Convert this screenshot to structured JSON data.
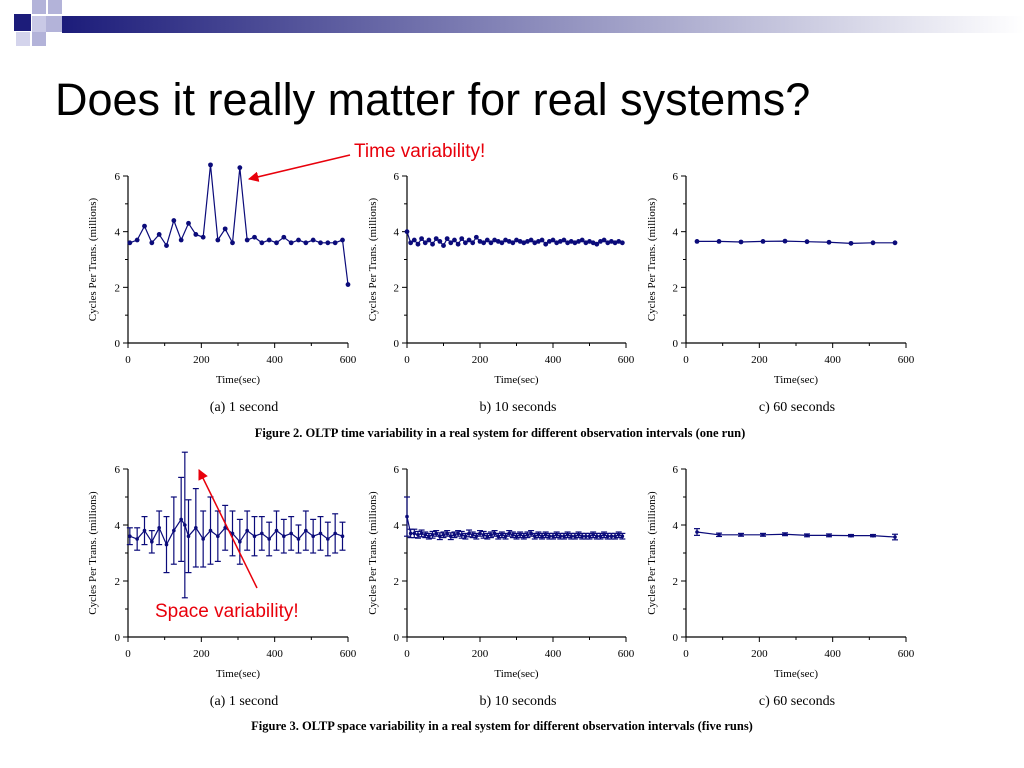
{
  "slide": {
    "title": "Does it really matter for real systems?"
  },
  "theme": {
    "deco_dark": "#1c1c7a",
    "deco_light": "#b3b3d9",
    "series_color": "#0b0b7a",
    "annotation_color": "#e8000b"
  },
  "annotations": {
    "time": "Time variability!",
    "space": "Space variability!"
  },
  "captions": {
    "fig2": "Figure 2. OLTP time variability in a real system for different observation intervals (one run)",
    "fig3": "Figure 3. OLTP space variability in a real system for different observation intervals (five runs)"
  },
  "chart_data": [
    {
      "panel": "fig2-a",
      "type": "line",
      "subtitle": "(a) 1 second",
      "xlabel": "Time(sec)",
      "ylabel": "Cycles Per Trans. (millions)",
      "xlim": [
        0,
        600
      ],
      "ylim": [
        0,
        6
      ],
      "xticks": [
        0,
        200,
        400,
        600
      ],
      "yticks": [
        0,
        2,
        4,
        6
      ],
      "interval_sec": 1,
      "error_bars": false,
      "x": [
        5,
        25,
        45,
        65,
        85,
        105,
        125,
        145,
        165,
        185,
        205,
        225,
        245,
        265,
        285,
        305,
        325,
        345,
        365,
        385,
        405,
        425,
        445,
        465,
        485,
        505,
        525,
        545,
        565,
        585,
        600
      ],
      "y": [
        3.6,
        3.7,
        4.2,
        3.6,
        3.9,
        3.5,
        4.4,
        3.7,
        4.3,
        3.9,
        3.8,
        6.4,
        3.7,
        4.1,
        3.6,
        6.3,
        3.7,
        3.8,
        3.6,
        3.7,
        3.6,
        3.8,
        3.6,
        3.7,
        3.6,
        3.7,
        3.6,
        3.6,
        3.6,
        3.7,
        2.1
      ]
    },
    {
      "panel": "fig2-b",
      "type": "line",
      "subtitle": "b) 10 seconds",
      "xlabel": "Time(sec)",
      "ylabel": "Cycles Per Trans. (millions)",
      "xlim": [
        0,
        600
      ],
      "ylim": [
        0,
        6
      ],
      "xticks": [
        0,
        200,
        400,
        600
      ],
      "yticks": [
        0,
        2,
        4,
        6
      ],
      "interval_sec": 10,
      "error_bars": false,
      "x": [
        0,
        10,
        20,
        30,
        40,
        50,
        60,
        70,
        80,
        90,
        100,
        110,
        120,
        130,
        140,
        150,
        160,
        170,
        180,
        190,
        200,
        210,
        220,
        230,
        240,
        250,
        260,
        270,
        280,
        290,
        300,
        310,
        320,
        330,
        340,
        350,
        360,
        370,
        380,
        390,
        400,
        410,
        420,
        430,
        440,
        450,
        460,
        470,
        480,
        490,
        500,
        510,
        520,
        530,
        540,
        550,
        560,
        570,
        580,
        590
      ],
      "y": [
        4.0,
        3.6,
        3.7,
        3.55,
        3.75,
        3.6,
        3.7,
        3.55,
        3.75,
        3.65,
        3.5,
        3.75,
        3.6,
        3.7,
        3.55,
        3.75,
        3.6,
        3.7,
        3.6,
        3.8,
        3.65,
        3.6,
        3.7,
        3.6,
        3.7,
        3.65,
        3.6,
        3.7,
        3.65,
        3.6,
        3.7,
        3.65,
        3.6,
        3.65,
        3.7,
        3.6,
        3.65,
        3.7,
        3.55,
        3.65,
        3.7,
        3.6,
        3.65,
        3.7,
        3.6,
        3.65,
        3.6,
        3.65,
        3.7,
        3.6,
        3.65,
        3.6,
        3.55,
        3.65,
        3.7,
        3.6,
        3.65,
        3.6,
        3.65,
        3.6
      ]
    },
    {
      "panel": "fig2-c",
      "type": "line",
      "subtitle": "c) 60 seconds",
      "xlabel": "Time(sec)",
      "ylabel": "Cycles Per Trans. (millions)",
      "xlim": [
        0,
        600
      ],
      "ylim": [
        0,
        6
      ],
      "xticks": [
        0,
        200,
        400,
        600
      ],
      "yticks": [
        0,
        2,
        4,
        6
      ],
      "interval_sec": 60,
      "error_bars": false,
      "x": [
        30,
        90,
        150,
        210,
        270,
        330,
        390,
        450,
        510,
        570
      ],
      "y": [
        3.65,
        3.65,
        3.63,
        3.65,
        3.66,
        3.64,
        3.62,
        3.58,
        3.6,
        3.6
      ]
    },
    {
      "panel": "fig3-a",
      "type": "line",
      "subtitle": "(a) 1 second",
      "xlabel": "Time(sec)",
      "ylabel": "Cycles Per Trans. (millions)",
      "xlim": [
        0,
        600
      ],
      "ylim": [
        0,
        6
      ],
      "xticks": [
        0,
        200,
        400,
        600
      ],
      "yticks": [
        0,
        2,
        4,
        6
      ],
      "interval_sec": 1,
      "error_bars": true,
      "x": [
        5,
        25,
        45,
        65,
        85,
        105,
        125,
        145,
        155,
        165,
        185,
        205,
        225,
        245,
        265,
        285,
        305,
        325,
        345,
        365,
        385,
        405,
        425,
        445,
        465,
        485,
        505,
        525,
        545,
        565,
        585
      ],
      "y": [
        3.6,
        3.5,
        3.8,
        3.4,
        3.9,
        3.3,
        3.8,
        4.2,
        4.0,
        3.6,
        3.9,
        3.5,
        3.8,
        3.6,
        3.9,
        3.7,
        3.4,
        3.8,
        3.6,
        3.7,
        3.5,
        3.8,
        3.6,
        3.7,
        3.5,
        3.8,
        3.6,
        3.7,
        3.5,
        3.7,
        3.6
      ],
      "err": [
        0.3,
        0.4,
        0.5,
        0.4,
        0.6,
        1.0,
        1.2,
        1.5,
        2.6,
        1.3,
        1.4,
        1.0,
        1.2,
        0.9,
        0.8,
        0.8,
        0.8,
        0.7,
        0.7,
        0.6,
        0.6,
        0.7,
        0.6,
        0.6,
        0.5,
        0.7,
        0.6,
        0.6,
        0.6,
        0.7,
        0.5
      ]
    },
    {
      "panel": "fig3-b",
      "type": "line",
      "subtitle": "b) 10 seconds",
      "xlabel": "Time(sec)",
      "ylabel": "Cycles Per Trans. (millions)",
      "xlim": [
        0,
        600
      ],
      "ylim": [
        0,
        6
      ],
      "xticks": [
        0,
        200,
        400,
        600
      ],
      "yticks": [
        0,
        2,
        4,
        6
      ],
      "interval_sec": 10,
      "error_bars": true,
      "x": [
        0,
        10,
        20,
        30,
        40,
        50,
        60,
        70,
        80,
        90,
        100,
        110,
        120,
        130,
        140,
        150,
        160,
        170,
        180,
        190,
        200,
        210,
        220,
        230,
        240,
        250,
        260,
        270,
        280,
        290,
        300,
        310,
        320,
        330,
        340,
        350,
        360,
        370,
        380,
        390,
        400,
        410,
        420,
        430,
        440,
        450,
        460,
        470,
        480,
        490,
        500,
        510,
        520,
        530,
        540,
        550,
        560,
        570,
        580,
        590
      ],
      "y": [
        4.3,
        3.7,
        3.7,
        3.65,
        3.7,
        3.65,
        3.6,
        3.65,
        3.7,
        3.6,
        3.65,
        3.7,
        3.6,
        3.65,
        3.7,
        3.65,
        3.6,
        3.7,
        3.65,
        3.6,
        3.7,
        3.65,
        3.6,
        3.65,
        3.7,
        3.6,
        3.65,
        3.6,
        3.7,
        3.65,
        3.6,
        3.65,
        3.6,
        3.65,
        3.7,
        3.6,
        3.65,
        3.6,
        3.65,
        3.6,
        3.6,
        3.65,
        3.6,
        3.6,
        3.65,
        3.6,
        3.6,
        3.65,
        3.6,
        3.6,
        3.6,
        3.65,
        3.6,
        3.6,
        3.65,
        3.6,
        3.6,
        3.6,
        3.65,
        3.6
      ],
      "err": [
        0.7,
        0.15,
        0.15,
        0.12,
        0.12,
        0.1,
        0.1,
        0.12,
        0.1,
        0.12,
        0.1,
        0.1,
        0.12,
        0.1,
        0.1,
        0.12,
        0.1,
        0.12,
        0.1,
        0.1,
        0.1,
        0.12,
        0.1,
        0.1,
        0.1,
        0.1,
        0.1,
        0.1,
        0.1,
        0.1,
        0.1,
        0.1,
        0.1,
        0.1,
        0.1,
        0.1,
        0.1,
        0.1,
        0.1,
        0.1,
        0.1,
        0.1,
        0.1,
        0.1,
        0.1,
        0.1,
        0.1,
        0.1,
        0.1,
        0.1,
        0.1,
        0.1,
        0.1,
        0.1,
        0.1,
        0.1,
        0.1,
        0.1,
        0.1,
        0.1
      ]
    },
    {
      "panel": "fig3-c",
      "type": "line",
      "subtitle": "c) 60 seconds",
      "xlabel": "Time(sec)",
      "ylabel": "Cycles Per Trans. (millions)",
      "xlim": [
        0,
        600
      ],
      "ylim": [
        0,
        6
      ],
      "xticks": [
        0,
        200,
        400,
        600
      ],
      "yticks": [
        0,
        2,
        4,
        6
      ],
      "interval_sec": 60,
      "error_bars": true,
      "x": [
        30,
        90,
        150,
        210,
        270,
        330,
        390,
        450,
        510,
        570
      ],
      "y": [
        3.75,
        3.65,
        3.65,
        3.65,
        3.67,
        3.63,
        3.63,
        3.62,
        3.62,
        3.57
      ],
      "err": [
        0.12,
        0.06,
        0.05,
        0.05,
        0.05,
        0.05,
        0.05,
        0.04,
        0.04,
        0.1
      ]
    }
  ]
}
